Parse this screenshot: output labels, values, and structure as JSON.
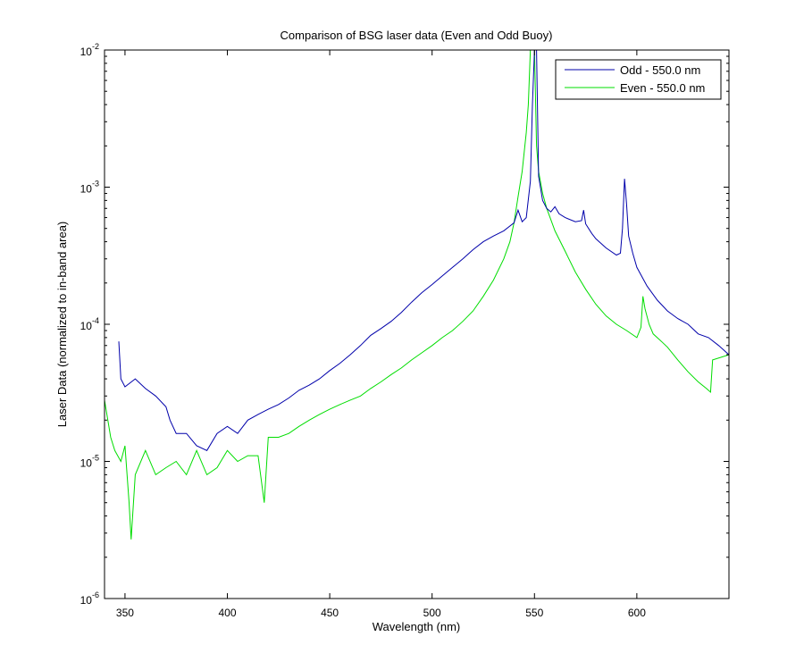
{
  "chart_data": {
    "type": "line",
    "title": "Comparison of BSG laser data (Even and Odd Buoy)",
    "xlabel": "Wavelength (nm)",
    "ylabel": "Laser Data (normalized to in-band area)",
    "xlim": [
      340,
      645
    ],
    "ylim": [
      1e-06,
      0.01
    ],
    "yscale": "log",
    "grid": false,
    "legend_position": "top-right",
    "x_ticks": [
      350,
      400,
      450,
      500,
      550,
      600
    ],
    "y_tick_labels": [
      {
        "value": 1e-06,
        "base": "10",
        "exp": "-6"
      },
      {
        "value": 1e-05,
        "base": "10",
        "exp": "-5"
      },
      {
        "value": 0.0001,
        "base": "10",
        "exp": "-4"
      },
      {
        "value": 0.001,
        "base": "10",
        "exp": "-3"
      },
      {
        "value": 0.01,
        "base": "10",
        "exp": "-2"
      }
    ],
    "series": [
      {
        "name": "Odd - 550.0 nm",
        "color": "#0000aa",
        "x": [
          347,
          348,
          350,
          355,
          360,
          365,
          370,
          372,
          375,
          380,
          385,
          390,
          395,
          400,
          405,
          410,
          415,
          420,
          425,
          430,
          435,
          440,
          445,
          450,
          455,
          460,
          465,
          470,
          475,
          480,
          485,
          490,
          495,
          500,
          505,
          510,
          515,
          520,
          525,
          530,
          535,
          540,
          542,
          544,
          546,
          548,
          549,
          550,
          551,
          552,
          554,
          556,
          558,
          560,
          562,
          565,
          570,
          573,
          574,
          575,
          578,
          580,
          585,
          590,
          592,
          593,
          594,
          595,
          596,
          598,
          600,
          605,
          610,
          615,
          620,
          625,
          630,
          635,
          640,
          645
        ],
        "y": [
          7.5e-05,
          4e-05,
          3.5e-05,
          4e-05,
          3.4e-05,
          3e-05,
          2.5e-05,
          2e-05,
          1.6e-05,
          1.6e-05,
          1.3e-05,
          1.2e-05,
          1.6e-05,
          1.8e-05,
          1.6e-05,
          2e-05,
          2.2e-05,
          2.4e-05,
          2.6e-05,
          2.9e-05,
          3.3e-05,
          3.6e-05,
          4e-05,
          4.6e-05,
          5.2e-05,
          6e-05,
          7e-05,
          8.3e-05,
          9.3e-05,
          0.000105,
          0.000122,
          0.000145,
          0.00017,
          0.000195,
          0.000225,
          0.00026,
          0.0003,
          0.00035,
          0.0004,
          0.00044,
          0.00048,
          0.00055,
          0.00068,
          0.00056,
          0.0006,
          0.0011,
          0.004,
          0.01,
          0.01,
          0.0012,
          0.0008,
          0.0007,
          0.00066,
          0.00072,
          0.00064,
          0.0006,
          0.00056,
          0.00057,
          0.00068,
          0.00054,
          0.00046,
          0.00042,
          0.00036,
          0.00032,
          0.00033,
          0.0005,
          0.00115,
          0.00075,
          0.00044,
          0.00033,
          0.00026,
          0.00019,
          0.00015,
          0.000125,
          0.00011,
          0.0001,
          8.5e-05,
          8e-05,
          7e-05,
          6e-05
        ]
      },
      {
        "name": "Even - 550.0 nm",
        "color": "#00dd00",
        "x": [
          340,
          343,
          345,
          348,
          350,
          352,
          353,
          355,
          360,
          365,
          370,
          375,
          380,
          385,
          390,
          395,
          400,
          405,
          410,
          415,
          418,
          420,
          425,
          430,
          435,
          440,
          445,
          450,
          455,
          460,
          465,
          470,
          475,
          480,
          485,
          490,
          495,
          500,
          505,
          510,
          515,
          520,
          525,
          530,
          535,
          538,
          540,
          542,
          544,
          546,
          547,
          548,
          549,
          550,
          551,
          552,
          554,
          556,
          558,
          560,
          565,
          570,
          575,
          580,
          585,
          590,
          595,
          600,
          602,
          603,
          604,
          606,
          608,
          612,
          615,
          620,
          625,
          630,
          634,
          636,
          637,
          645
        ],
        "y": [
          2.8e-05,
          1.5e-05,
          1.2e-05,
          1e-05,
          1.3e-05,
          5e-06,
          2.7e-06,
          8e-06,
          1.2e-05,
          8e-06,
          9e-06,
          1e-05,
          8e-06,
          1.2e-05,
          8e-06,
          9e-06,
          1.2e-05,
          1e-05,
          1.1e-05,
          1.1e-05,
          5e-06,
          1.5e-05,
          1.5e-05,
          1.6e-05,
          1.8e-05,
          2e-05,
          2.2e-05,
          2.4e-05,
          2.6e-05,
          2.8e-05,
          3e-05,
          3.4e-05,
          3.8e-05,
          4.3e-05,
          4.8e-05,
          5.5e-05,
          6.2e-05,
          7e-05,
          8e-05,
          9e-05,
          0.000105,
          0.000125,
          0.00016,
          0.00021,
          0.0003,
          0.0004,
          0.00055,
          0.00085,
          0.0013,
          0.0025,
          0.004,
          0.01,
          0.01,
          0.01,
          0.002,
          0.0013,
          0.0009,
          0.0007,
          0.00058,
          0.00048,
          0.00034,
          0.00024,
          0.00018,
          0.00014,
          0.000115,
          0.0001,
          9e-05,
          8e-05,
          9.5e-05,
          0.00016,
          0.00013,
          0.0001,
          8.5e-05,
          7.5e-05,
          6.8e-05,
          5.5e-05,
          4.5e-05,
          3.8e-05,
          3.4e-05,
          3.2e-05,
          5.5e-05,
          6e-05
        ]
      }
    ]
  }
}
